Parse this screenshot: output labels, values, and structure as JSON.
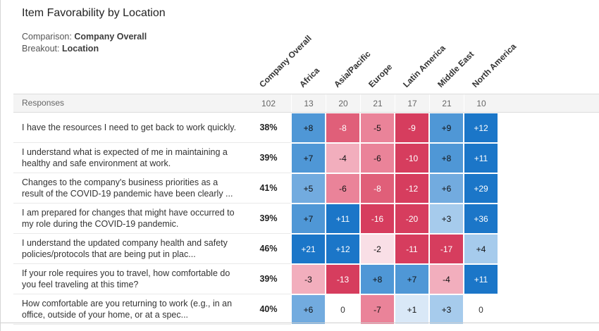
{
  "header": {
    "title": "Item Favorability by Location"
  },
  "meta": {
    "comparison_label": "Comparison:",
    "comparison_value": "Company Overall",
    "breakout_label": "Breakout:",
    "breakout_value": "Location"
  },
  "table": {
    "corner_label": "Responses",
    "columns": [
      "Company Overall",
      "Africa",
      "Asia/Pacific",
      "Europe",
      "Latin America",
      "Middle East",
      "North America"
    ],
    "responses": [
      "102",
      "13",
      "20",
      "21",
      "17",
      "21",
      "10"
    ],
    "rows": [
      {
        "question": "I have the resources I need to get back to work quickly.",
        "overall": "38%",
        "cells": [
          {
            "v": "+8",
            "bg": "#4f97d6",
            "fg": "#111111"
          },
          {
            "v": "-8",
            "bg": "#e05f79",
            "fg": "#ffffff"
          },
          {
            "v": "-5",
            "bg": "#ea8399",
            "fg": "#111111"
          },
          {
            "v": "-9",
            "bg": "#d63d5e",
            "fg": "#ffffff"
          },
          {
            "v": "+9",
            "bg": "#4f97d6",
            "fg": "#111111"
          },
          {
            "v": "+12",
            "bg": "#1b76c8",
            "fg": "#ffffff"
          }
        ]
      },
      {
        "question": "I understand what is expected of me in maintaining a healthy and safe environment at work.",
        "overall": "39%",
        "cells": [
          {
            "v": "+7",
            "bg": "#4f97d6",
            "fg": "#111111"
          },
          {
            "v": "-4",
            "bg": "#f2aebd",
            "fg": "#111111"
          },
          {
            "v": "-6",
            "bg": "#ea8399",
            "fg": "#111111"
          },
          {
            "v": "-10",
            "bg": "#d63d5e",
            "fg": "#ffffff"
          },
          {
            "v": "+8",
            "bg": "#4f97d6",
            "fg": "#111111"
          },
          {
            "v": "+11",
            "bg": "#1b76c8",
            "fg": "#ffffff"
          }
        ]
      },
      {
        "question": "Changes to the company's business priorities as a result of the COVID-19 pandemic have been clearly ...",
        "overall": "41%",
        "cells": [
          {
            "v": "+5",
            "bg": "#72abdf",
            "fg": "#111111"
          },
          {
            "v": "-6",
            "bg": "#ea8399",
            "fg": "#111111"
          },
          {
            "v": "-8",
            "bg": "#e05f79",
            "fg": "#ffffff"
          },
          {
            "v": "-12",
            "bg": "#d63d5e",
            "fg": "#ffffff"
          },
          {
            "v": "+6",
            "bg": "#72abdf",
            "fg": "#111111"
          },
          {
            "v": "+29",
            "bg": "#1b76c8",
            "fg": "#ffffff"
          }
        ]
      },
      {
        "question": "I am prepared for changes that might have occurred to my role during the COVID-19 pandemic.",
        "overall": "39%",
        "cells": [
          {
            "v": "+7",
            "bg": "#4f97d6",
            "fg": "#111111"
          },
          {
            "v": "+11",
            "bg": "#1b76c8",
            "fg": "#ffffff"
          },
          {
            "v": "-16",
            "bg": "#d63d5e",
            "fg": "#ffffff"
          },
          {
            "v": "-20",
            "bg": "#d63d5e",
            "fg": "#ffffff"
          },
          {
            "v": "+3",
            "bg": "#a6cbec",
            "fg": "#111111"
          },
          {
            "v": "+36",
            "bg": "#1b76c8",
            "fg": "#ffffff"
          }
        ]
      },
      {
        "question": "I understand the updated company health and safety policies/protocols that are being put in plac...",
        "overall": "46%",
        "cells": [
          {
            "v": "+21",
            "bg": "#1b76c8",
            "fg": "#ffffff"
          },
          {
            "v": "+12",
            "bg": "#1b76c8",
            "fg": "#ffffff"
          },
          {
            "v": "-2",
            "bg": "#f9dfe6",
            "fg": "#111111"
          },
          {
            "v": "-11",
            "bg": "#d63d5e",
            "fg": "#ffffff"
          },
          {
            "v": "-17",
            "bg": "#d63d5e",
            "fg": "#ffffff"
          },
          {
            "v": "+4",
            "bg": "#a6cbec",
            "fg": "#111111"
          }
        ]
      },
      {
        "question": "If your role requires you to travel, how comfortable do you feel traveling at this time?",
        "overall": "39%",
        "cells": [
          {
            "v": "-3",
            "bg": "#f2aebd",
            "fg": "#111111"
          },
          {
            "v": "-13",
            "bg": "#d63d5e",
            "fg": "#ffffff"
          },
          {
            "v": "+8",
            "bg": "#4f97d6",
            "fg": "#111111"
          },
          {
            "v": "+7",
            "bg": "#4f97d6",
            "fg": "#111111"
          },
          {
            "v": "-4",
            "bg": "#f2aebd",
            "fg": "#111111"
          },
          {
            "v": "+11",
            "bg": "#1b76c8",
            "fg": "#ffffff"
          }
        ]
      },
      {
        "question": "How comfortable are you returning to work (e.g., in an office, outside of your home, or at a spec...",
        "overall": "40%",
        "cells": [
          {
            "v": "+6",
            "bg": "#72abdf",
            "fg": "#111111"
          },
          {
            "v": "0",
            "bg": "#ffffff",
            "fg": "#333333"
          },
          {
            "v": "-7",
            "bg": "#ea8399",
            "fg": "#111111"
          },
          {
            "v": "+1",
            "bg": "#d9e8f7",
            "fg": "#111111"
          },
          {
            "v": "+3",
            "bg": "#a6cbec",
            "fg": "#111111"
          },
          {
            "v": "0",
            "bg": "#ffffff",
            "fg": "#333333"
          }
        ]
      }
    ]
  },
  "colors": {
    "strong_blue": "#1b76c8",
    "medium_blue": "#4f97d6",
    "light_blue": "#a6cbec",
    "strong_red": "#d63d5e",
    "medium_red": "#e05f79",
    "light_pink": "#f2aebd"
  },
  "chart_data": {
    "type": "heatmap",
    "title": "Item Favorability by Location",
    "comparison": "Company Overall",
    "breakout": "Location",
    "columns": [
      "Company Overall",
      "Africa",
      "Asia/Pacific",
      "Europe",
      "Latin America",
      "Middle East",
      "North America"
    ],
    "responses": [
      102,
      13,
      20,
      21,
      17,
      21,
      10
    ],
    "rows": [
      {
        "question": "I have the resources I need to get back to work quickly.",
        "company_overall_pct": 38,
        "deltas": [
          8,
          -8,
          -5,
          -9,
          9,
          12
        ]
      },
      {
        "question": "I understand what is expected of me in maintaining a healthy and safe environment at work.",
        "company_overall_pct": 39,
        "deltas": [
          7,
          -4,
          -6,
          -10,
          8,
          11
        ]
      },
      {
        "question": "Changes to the company's business priorities as a result of the COVID-19 pandemic have been clearly ...",
        "company_overall_pct": 41,
        "deltas": [
          5,
          -6,
          -8,
          -12,
          6,
          29
        ]
      },
      {
        "question": "I am prepared for changes that might have occurred to my role during the COVID-19 pandemic.",
        "company_overall_pct": 39,
        "deltas": [
          7,
          11,
          -16,
          -20,
          3,
          36
        ]
      },
      {
        "question": "I understand the updated company health and safety policies/protocols that are being put in plac...",
        "company_overall_pct": 46,
        "deltas": [
          21,
          12,
          -2,
          -11,
          -17,
          4
        ]
      },
      {
        "question": "If your role requires you to travel, how comfortable do you feel traveling at this time?",
        "company_overall_pct": 39,
        "deltas": [
          -3,
          -13,
          8,
          7,
          -4,
          11
        ]
      },
      {
        "question": "How comfortable are you returning to work (e.g., in an office, outside of your home, or at a spec...",
        "company_overall_pct": 40,
        "deltas": [
          6,
          0,
          -7,
          1,
          3,
          0
        ]
      }
    ],
    "legend_position": "none",
    "grid": false
  }
}
